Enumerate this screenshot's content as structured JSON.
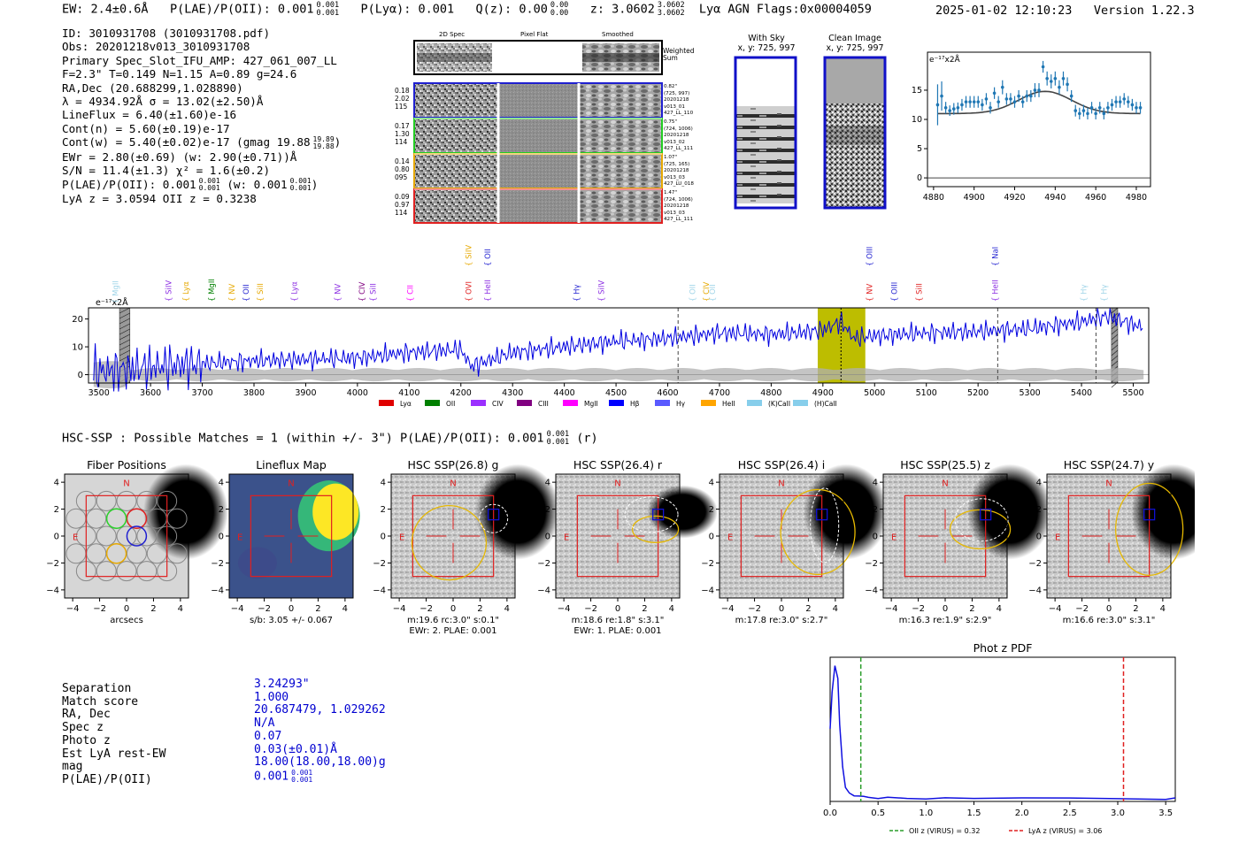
{
  "header": {
    "ew": "EW: 2.4±0.6Å",
    "plae_label": "P(LAE)/P(OII): 0.001",
    "plae_sup": "0.001",
    "plae_sub": "0.001",
    "plya": "P(Lyα): 0.001",
    "qz_label": "Q(z): 0.00",
    "qz_sup": "0.00",
    "qz_sub": "0.00",
    "z_label": "z: 3.0602",
    "z_sup": "3.0602",
    "z_sub": "3.0602",
    "line_agn": "Lyα  AGN  Flags:0x00004059",
    "datetime": "2025-01-02 12:10:23",
    "version": "Version 1.22.3"
  },
  "info": {
    "id": "ID: 3010931708 (3010931708.pdf)",
    "obs": "Obs: 20201218v013_3010931708",
    "primary": "Primary Spec_Slot_IFU_AMP: 427_061_007_LL",
    "fit": "F=2.3\"  T=0.149  N=1.15  A=0.89  g=24.6",
    "radec": "RA,Dec (20.688299,1.028890)",
    "lambda": "λ = 4934.92Å  σ = 13.02(±2.50)Å",
    "lineflux": "LineFlux = 6.40(±1.60)e-16",
    "contn": "Cont(n) = 5.60(±0.19)e-17",
    "contw": "Cont(w) = 5.40(±0.02)e-17 (gmag 19.88",
    "contw_sup": "19.89",
    "contw_sub": "19.88",
    "contw_end": ")",
    "ewr": "EWr = 2.80(±0.69) (w: 2.90(±0.71))Å",
    "sn": "S/N = 11.4(±1.3)  χ² = 1.6(±0.2)",
    "plae": "P(LAE)/P(OII): 0.001",
    "plae_sup": "0.001",
    "plae_sub": "0.001",
    "plae_w": "(w: 0.001",
    "plae_w_sup": "0.001",
    "plae_w_sub": "0.001",
    "plae_w_end": ")",
    "lyaz": "LyA z = 3.0594  OII z = 0.3238"
  },
  "cutouts": {
    "col_2d": "2D Spec",
    "col_flat": "Pixel Flat",
    "col_smooth": "Smoothed",
    "weighted": "Weighted",
    "sum": "Sum",
    "rows": [
      {
        "w1": "0.18",
        "w2": "2.02",
        "w3": "115",
        "n1": "0.82\"",
        "n2": "(725, 997)",
        "n3": "20201218",
        "n4": "v013_01",
        "n5": "427_LL_110",
        "color": "#1f1fd0"
      },
      {
        "w1": "0.17",
        "w2": "1.30",
        "w3": "114",
        "n1": "0.75\"",
        "n2": "(724, 1006)",
        "n3": "20201218",
        "n4": "v013_02",
        "n5": "427_LL_111",
        "color": "#22cc22"
      },
      {
        "w1": "0.14",
        "w2": "0.80",
        "w3": "095",
        "n1": "1.07\"",
        "n2": "(725, 165)",
        "n3": "20201218",
        "n4": "v013_03",
        "n5": "427_LU_018",
        "color": "#e69500"
      },
      {
        "w1": "0.09",
        "w2": "0.97",
        "w3": "114",
        "n1": "1.47\"",
        "n2": "(724, 1006)",
        "n3": "20201218",
        "n4": "v013_03",
        "n5": "427_LL_111",
        "color": "#e02020"
      }
    ]
  },
  "sky": {
    "with_sky": "With Sky",
    "with_sky_xy": "x, y: 725, 997",
    "clean": "Clean Image",
    "clean_xy": "x, y: 725, 997"
  },
  "zoom_chart": {
    "unit": "e⁻¹⁷x2Å",
    "xticks": [
      4880,
      4900,
      4920,
      4940,
      4960,
      4980
    ],
    "yticks": [
      0,
      5,
      10,
      15
    ],
    "xlim": [
      4877,
      4987
    ],
    "ylim": [
      -1.5,
      21.5
    ],
    "model_color": "#444444",
    "data_color": "#1f77b4"
  },
  "chart_data": [
    {
      "type": "scatter",
      "title": "",
      "ylabel": "e⁻¹⁷x2Å",
      "xlim": [
        4877,
        4987
      ],
      "ylim": [
        -1.5,
        21.5
      ],
      "x": [
        4882,
        4884,
        4886,
        4888,
        4890,
        4892,
        4894,
        4896,
        4898,
        4900,
        4902,
        4904,
        4906,
        4908,
        4910,
        4912,
        4914,
        4916,
        4918,
        4920,
        4922,
        4924,
        4926,
        4928,
        4930,
        4932,
        4934,
        4936,
        4938,
        4940,
        4942,
        4944,
        4946,
        4948,
        4950,
        4952,
        4954,
        4956,
        4958,
        4960,
        4962,
        4964,
        4966,
        4968,
        4970,
        4972,
        4974,
        4976,
        4978,
        4980,
        4982
      ],
      "y": [
        12.5,
        14.0,
        12.0,
        11.5,
        11.8,
        12.0,
        12.5,
        13.0,
        13.0,
        13.0,
        13.0,
        12.5,
        13.5,
        12.0,
        14.5,
        13.0,
        15.5,
        13.5,
        13.5,
        13.0,
        14.0,
        13.0,
        14.0,
        14.0,
        15.0,
        15.0,
        19.0,
        17.0,
        16.5,
        17.0,
        15.5,
        17.0,
        16.0,
        14.0,
        11.5,
        11.0,
        11.5,
        11.0,
        12.0,
        11.0,
        12.0,
        11.0,
        12.0,
        12.5,
        13.0,
        13.0,
        13.5,
        13.0,
        12.5,
        12.0,
        12.0
      ],
      "err": [
        3.5,
        2.5,
        1.0,
        0.9,
        1.0,
        0.9,
        1.0,
        1.0,
        1.0,
        1.0,
        1.0,
        1.0,
        1.0,
        1.0,
        1.0,
        1.0,
        1.2,
        1.0,
        1.0,
        1.0,
        1.0,
        1.0,
        1.0,
        1.0,
        1.2,
        1.2,
        1.0,
        1.2,
        1.2,
        1.2,
        1.2,
        1.2,
        1.2,
        1.0,
        1.0,
        1.0,
        1.0,
        1.0,
        1.0,
        1.0,
        1.0,
        1.0,
        1.0,
        1.0,
        1.0,
        1.0,
        1.0,
        1.0,
        1.0,
        1.0,
        1.0
      ],
      "model": {
        "type": "gaussian",
        "center": 4935,
        "amplitude": 3.8,
        "sigma": 13.0,
        "baseline": 11.0
      }
    },
    {
      "type": "line",
      "title": "",
      "ylabel": "e⁻¹⁷x2Å",
      "xlim": [
        3480,
        5530
      ],
      "ylim": [
        -3,
        24
      ],
      "xticks": [
        3500,
        3600,
        3700,
        3800,
        3900,
        4000,
        4100,
        4200,
        4300,
        4400,
        4500,
        4600,
        4700,
        4800,
        4900,
        5000,
        5100,
        5200,
        5300,
        5400,
        5500
      ],
      "yticks": [
        0,
        10,
        20
      ],
      "anchors_x": [
        3490,
        3560,
        3620,
        3700,
        3800,
        3900,
        4000,
        4050,
        4100,
        4200,
        4220,
        4300,
        4400,
        4500,
        4600,
        4700,
        4800,
        4850,
        4900,
        4935,
        4960,
        5000,
        5100,
        5200,
        5300,
        5400,
        5450,
        5500,
        5520
      ],
      "anchors_y": [
        1,
        2,
        3,
        4,
        5,
        5.5,
        6,
        7,
        8,
        9,
        3,
        8,
        10,
        12,
        13,
        15,
        14.5,
        15,
        16,
        19,
        13,
        14,
        15,
        15.5,
        16.5,
        19,
        21,
        18,
        17
      ],
      "highlight_band": [
        4890,
        4982
      ],
      "marker_line": 4935,
      "dashed_lines": [
        4620,
        5238,
        5428
      ],
      "hatched_bands": [
        [
          3540,
          3560
        ],
        [
          5458,
          5470
        ]
      ],
      "line_labels": [
        {
          "label": "MgII",
          "x": 3532,
          "color": "#9fd4e8",
          "row": 3
        },
        {
          "label": "SiIV",
          "x": 3635,
          "color": "#8a2be2",
          "row": 2
        },
        {
          "label": "Lyα",
          "x": 3668,
          "color": "#e6a800",
          "row": 2
        },
        {
          "label": "MgII",
          "x": 3718,
          "color": "#008000",
          "row": 2
        },
        {
          "label": "NV",
          "x": 3757,
          "color": "#e6a800",
          "row": 2
        },
        {
          "label": "OII",
          "x": 3785,
          "color": "#1f1fd0",
          "row": 2
        },
        {
          "label": "SiII",
          "x": 3812,
          "color": "#e6a800",
          "row": 2
        },
        {
          "label": "Lyα",
          "x": 3878,
          "color": "#8a2be2",
          "row": 2
        },
        {
          "label": "NV",
          "x": 3962,
          "color": "#8a2be2",
          "row": 2
        },
        {
          "label": "CIV",
          "x": 4009,
          "color": "#800080",
          "row": 2
        },
        {
          "label": "SiII",
          "x": 4030,
          "color": "#8a2be2",
          "row": 2
        },
        {
          "label": "CII",
          "x": 4102,
          "color": "#ff00ff",
          "row": 2
        },
        {
          "label": "SiIV",
          "x": 4215,
          "color": "#e6a800",
          "row": 1
        },
        {
          "label": "OVI",
          "x": 4215,
          "color": "#e02020",
          "row": 2
        },
        {
          "label": "OII",
          "x": 4252,
          "color": "#1f1fd0",
          "row": 1
        },
        {
          "label": "HeII",
          "x": 4252,
          "color": "#8a2be2",
          "row": 2
        },
        {
          "label": "Hγ",
          "x": 4424,
          "color": "#1f1fd0",
          "row": 2
        },
        {
          "label": "SiIV",
          "x": 4472,
          "color": "#8a2be2",
          "row": 2
        },
        {
          "label": "OII",
          "x": 4648,
          "color": "#9fd4e8",
          "row": 2
        },
        {
          "label": "CIV",
          "x": 4674,
          "color": "#e6a800",
          "row": 2
        },
        {
          "label": "OII",
          "x": 4686,
          "color": "#9fd4e8",
          "row": 2
        },
        {
          "label": "OIII",
          "x": 4990,
          "color": "#1f1fd0",
          "row": 1
        },
        {
          "label": "NV",
          "x": 4990,
          "color": "#e02020",
          "row": 2
        },
        {
          "label": "OIII",
          "x": 5038,
          "color": "#1f1fd0",
          "row": 2
        },
        {
          "label": "SiII",
          "x": 5086,
          "color": "#e02020",
          "row": 2
        },
        {
          "label": "NaI",
          "x": 5233,
          "color": "#1f1fd0",
          "row": 1
        },
        {
          "label": "HeII",
          "x": 5233,
          "color": "#8a2be2",
          "row": 2
        },
        {
          "label": "Hγ",
          "x": 5404,
          "color": "#9fd4e8",
          "row": 2
        },
        {
          "label": "Hγ",
          "x": 5444,
          "color": "#9fd4e8",
          "row": 2
        }
      ],
      "legend": [
        {
          "label": "Lyα",
          "color": "#e00000"
        },
        {
          "label": "OII",
          "color": "#008000"
        },
        {
          "label": "CIV",
          "color": "#9b30ff"
        },
        {
          "label": "CIII",
          "color": "#800080"
        },
        {
          "label": "MgII",
          "color": "#ff00ff"
        },
        {
          "label": "Hβ",
          "color": "#0000ff"
        },
        {
          "label": "Hγ",
          "color": "#5a5aff"
        },
        {
          "label": "HeII",
          "color": "#ffa500"
        },
        {
          "label": "(K)CaII",
          "color": "#87ceeb"
        },
        {
          "label": "(H)CaII",
          "color": "#87ceeb"
        }
      ]
    },
    {
      "type": "line",
      "title": "Phot z PDF",
      "xlim": [
        0,
        3.6
      ],
      "xticks": [
        0.0,
        0.5,
        1.0,
        1.5,
        2.0,
        2.5,
        3.0,
        3.5
      ],
      "x": [
        0.0,
        0.02,
        0.05,
        0.08,
        0.1,
        0.13,
        0.16,
        0.2,
        0.25,
        0.3,
        0.35,
        0.4,
        0.5,
        0.6,
        0.8,
        1.0,
        1.2,
        1.5,
        2.0,
        2.5,
        3.0,
        3.5,
        3.6
      ],
      "y": [
        0.52,
        0.78,
        0.97,
        0.88,
        0.55,
        0.25,
        0.1,
        0.06,
        0.04,
        0.035,
        0.03,
        0.028,
        0.026,
        0.025,
        0.024,
        0.023,
        0.022,
        0.021,
        0.02,
        0.02,
        0.02,
        0.02,
        0.02
      ],
      "vlines": [
        {
          "x": 0.32,
          "color": "#2a9d2a",
          "label": "OII z (VIRUS) = 0.32"
        },
        {
          "x": 3.06,
          "color": "#e02020",
          "label": "LyA z (VIRUS) = 3.06"
        }
      ]
    }
  ],
  "hsc": {
    "title": "HSC-SSP : Possible Matches = 1 (within +/- 3\")  P(LAE)/P(OII): 0.001",
    "title_sup": "0.001",
    "title_sub": "0.001",
    "title_end": "(r)",
    "axis_ticks": [
      "4",
      "2",
      "0",
      "−2",
      "−4"
    ],
    "x_ticks": [
      "−4",
      "−2",
      "0",
      "2",
      "4"
    ],
    "north": "N",
    "east": "E",
    "panels": [
      {
        "title": "Fiber Positions",
        "cap1": "arcsecs",
        "cap2": ""
      },
      {
        "title": "Lineflux Map",
        "cap1": "s/b: 3.05 +/- 0.067",
        "cap2": ""
      },
      {
        "title": "HSC SSP(26.8) g",
        "cap1": "m:19.6 rc:3.0\"  s:0.1\"",
        "cap2": "EWr: 2. PLAE: 0.001"
      },
      {
        "title": "HSC SSP(26.4) r",
        "cap1": "m:18.6  re:1.8\"  s:3.1\"",
        "cap2": "EWr: 1. PLAE: 0.001"
      },
      {
        "title": "HSC SSP(26.4) i",
        "cap1": "m:17.8  re:3.0\"  s:2.7\"",
        "cap2": ""
      },
      {
        "title": "HSC SSP(25.5) z",
        "cap1": "m:16.3  re:1.9\"  s:2.9\"",
        "cap2": ""
      },
      {
        "title": "HSC SSP(24.7) y",
        "cap1": "m:16.6  re:3.0\"  s:3.1\"",
        "cap2": ""
      }
    ]
  },
  "match": {
    "labels": [
      "Separation",
      "Match score",
      "RA, Dec",
      "Spec z",
      "Photo z",
      "Est LyA rest-EW",
      "mag",
      "P(LAE)/P(OII)"
    ],
    "values": [
      "3.24293\"",
      "1.000",
      "20.687479, 1.029262",
      "N/A",
      "0.07",
      "0.03(±0.01)Å",
      "18.00(18.00,18.00)g",
      "0.001"
    ],
    "plae_sup": "0.001",
    "plae_sub": "0.001"
  }
}
